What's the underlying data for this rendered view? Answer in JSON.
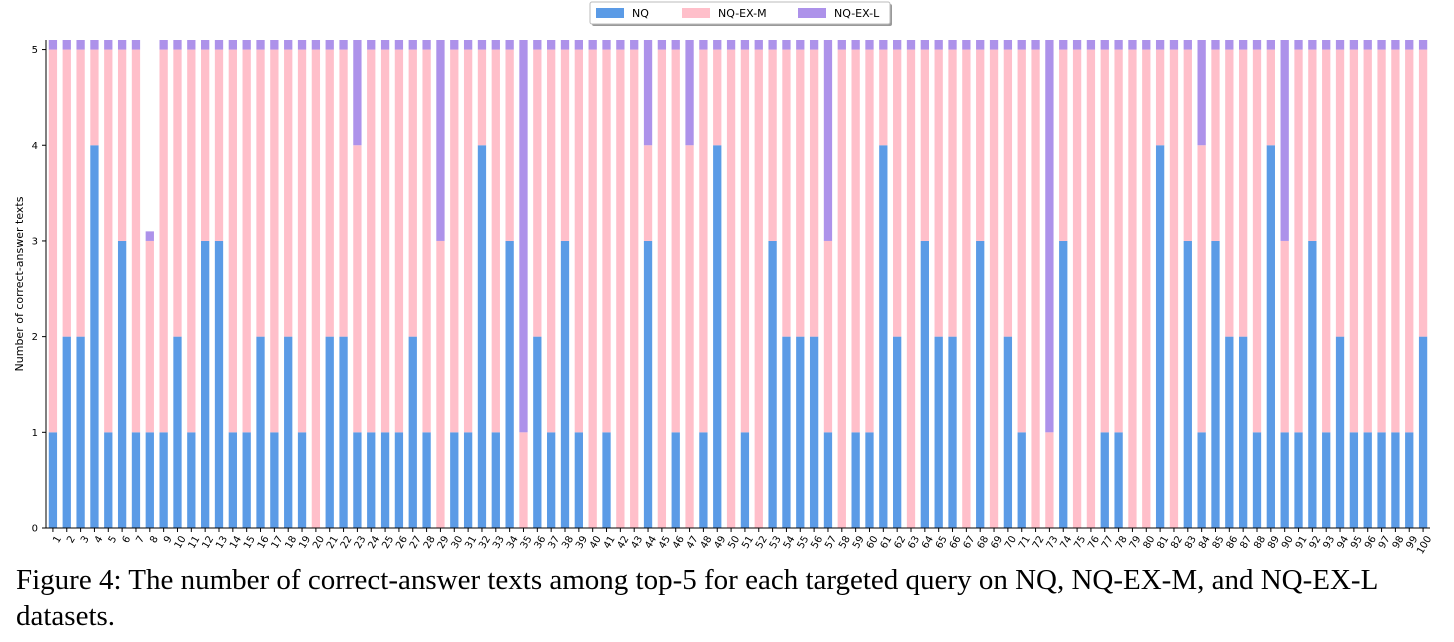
{
  "caption": "Figure 4: The number of correct-answer texts among top-5 for each targeted query on NQ, NQ-EX-M, and NQ-EX-L datasets.",
  "chart_data": {
    "type": "bar",
    "stacked": true,
    "ylabel": "Number of correct-answer texts",
    "xlabel": "",
    "ylim": [
      0,
      5.1
    ],
    "yticks": [
      0,
      1,
      2,
      3,
      4,
      5
    ],
    "grid": false,
    "legend_position": "top-center",
    "categories": [
      "1",
      "2",
      "3",
      "4",
      "5",
      "6",
      "7",
      "8",
      "9",
      "10",
      "11",
      "12",
      "13",
      "14",
      "15",
      "16",
      "17",
      "18",
      "19",
      "20",
      "21",
      "22",
      "23",
      "24",
      "25",
      "26",
      "27",
      "28",
      "29",
      "30",
      "31",
      "32",
      "33",
      "34",
      "35",
      "36",
      "37",
      "38",
      "39",
      "40",
      "41",
      "42",
      "43",
      "44",
      "45",
      "46",
      "47",
      "48",
      "49",
      "50",
      "51",
      "52",
      "53",
      "54",
      "55",
      "56",
      "57",
      "58",
      "59",
      "60",
      "61",
      "62",
      "63",
      "64",
      "65",
      "66",
      "67",
      "68",
      "69",
      "70",
      "71",
      "72",
      "73",
      "74",
      "75",
      "76",
      "77",
      "78",
      "79",
      "80",
      "81",
      "82",
      "83",
      "84",
      "85",
      "86",
      "87",
      "88",
      "89",
      "90",
      "91",
      "92",
      "93",
      "94",
      "95",
      "96",
      "97",
      "98",
      "99",
      "100"
    ],
    "series": [
      {
        "name": "NQ",
        "color": "#5b9be6",
        "values": [
          1,
          2,
          2,
          4,
          1,
          3,
          1,
          1,
          1,
          2,
          1,
          3,
          3,
          1,
          1,
          2,
          1,
          2,
          1,
          0,
          2,
          2,
          1,
          1,
          1,
          1,
          2,
          1,
          0,
          1,
          1,
          4,
          1,
          3,
          0,
          2,
          1,
          3,
          1,
          0,
          1,
          0,
          0,
          3,
          0,
          1,
          0,
          1,
          4,
          0,
          1,
          0,
          3,
          2,
          2,
          2,
          1,
          0,
          1,
          1,
          4,
          2,
          0,
          3,
          2,
          2,
          0,
          3,
          0,
          2,
          1,
          0,
          0,
          3,
          0,
          0,
          1,
          1,
          0,
          0,
          4,
          0,
          3,
          1,
          3,
          2,
          2,
          1,
          4,
          1,
          1,
          3,
          1,
          2,
          1,
          1,
          1,
          1,
          1,
          2
        ]
      },
      {
        "name": "NQ-EX-M",
        "color": "#ffbfca",
        "values": [
          4,
          3,
          3,
          1,
          4,
          2,
          4,
          2,
          4,
          3,
          4,
          2,
          2,
          4,
          4,
          3,
          4,
          3,
          4,
          5,
          3,
          3,
          3,
          4,
          4,
          4,
          3,
          4,
          3,
          4,
          4,
          1,
          4,
          2,
          1,
          3,
          4,
          2,
          4,
          5,
          4,
          5,
          5,
          1,
          5,
          4,
          4,
          4,
          1,
          5,
          4,
          5,
          2,
          3,
          3,
          3,
          2,
          5,
          4,
          4,
          1,
          3,
          5,
          2,
          3,
          3,
          5,
          2,
          5,
          3,
          4,
          5,
          1,
          2,
          5,
          5,
          4,
          4,
          5,
          5,
          1,
          5,
          2,
          3,
          2,
          3,
          3,
          4,
          1,
          2,
          4,
          2,
          4,
          3,
          4,
          4,
          4,
          4,
          4,
          3
        ]
      },
      {
        "name": "NQ-EX-L",
        "color": "#ad92ea",
        "values": [
          0.1,
          0.1,
          0.1,
          0.1,
          0.1,
          0.1,
          0.1,
          0.1,
          0.1,
          0.1,
          0.1,
          0.1,
          0.1,
          0.1,
          0.1,
          0.1,
          0.1,
          0.1,
          0.1,
          0.1,
          0.1,
          0.1,
          1.1,
          0.1,
          0.1,
          0.1,
          0.1,
          0.1,
          2.1,
          0.1,
          0.1,
          0.1,
          0.1,
          0.1,
          4.1,
          0.1,
          0.1,
          0.1,
          0.1,
          0.1,
          0.1,
          0.1,
          0.1,
          1.1,
          0.1,
          0.1,
          1.1,
          0.1,
          0.1,
          0.1,
          0.1,
          0.1,
          0.1,
          0.1,
          0.1,
          0.1,
          2.1,
          0.1,
          0.1,
          0.1,
          0.1,
          0.1,
          0.1,
          0.1,
          0.1,
          0.1,
          0.1,
          0.1,
          0.1,
          0.1,
          0.1,
          0.1,
          4.1,
          0.1,
          0.1,
          0.1,
          0.1,
          0.1,
          0.1,
          0.1,
          0.1,
          0.1,
          0.1,
          1.1,
          0.1,
          0.1,
          0.1,
          0.1,
          0.1,
          2.1,
          0.1,
          0.1,
          0.1,
          0.1,
          0.1,
          0.1,
          0.1,
          0.1,
          0.1,
          0.1
        ]
      }
    ]
  }
}
